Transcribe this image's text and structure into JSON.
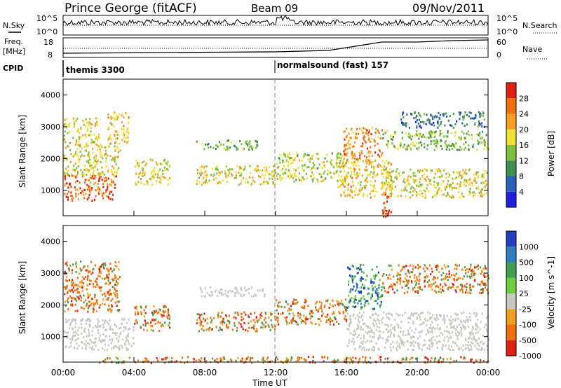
{
  "header": {
    "title": "Prince George (fitACF)",
    "beam": "Beam 09",
    "date": "09/Nov/2011"
  },
  "top_panels": {
    "nsky_label": "N.Sky",
    "nsky_ticks": [
      "10^5",
      "10^0"
    ],
    "nsearch_label": "N.Search",
    "nsearch_ticks": [
      "10^5",
      "10^0"
    ],
    "freq_label": [
      "Freq.",
      "[MHz]"
    ],
    "freq_ticks": [
      "18",
      "8"
    ],
    "nave_label": "Nave",
    "nave_ticks": [
      "60",
      "0"
    ],
    "cpid_label": "CPID",
    "cpid_modes": [
      {
        "name": "themis 3300",
        "start_hour": 0
      },
      {
        "name": "normalsound (fast) 157",
        "start_hour": 12
      }
    ]
  },
  "chart_data": [
    {
      "type": "heatmap",
      "panel": "power",
      "ylabel": "Slant Range [km]",
      "xlabel": "",
      "xlim": [
        0,
        24
      ],
      "ylim": [
        200,
        4500
      ],
      "y_ticks": [
        "1000",
        "2000",
        "3000",
        "4000"
      ],
      "y_tick_values": [
        1000,
        2000,
        3000,
        4000
      ],
      "colorbar": {
        "label": "Power [dB]",
        "ticks": [
          "4",
          "8",
          "12",
          "16",
          "20",
          "24",
          "28"
        ],
        "colors": [
          "#1f1fe0",
          "#2a60b8",
          "#3f8f50",
          "#7fbf3f",
          "#f0e030",
          "#f5a020",
          "#f07010",
          "#e02010"
        ]
      },
      "echo_regions": [
        {
          "t0": 0.0,
          "t1": 3.0,
          "r0": 700,
          "r1": 1500,
          "level": 26
        },
        {
          "t0": 0.0,
          "t1": 3.2,
          "r0": 1500,
          "r1": 2500,
          "level": 18
        },
        {
          "t0": 0.0,
          "t1": 2.0,
          "r0": 2500,
          "r1": 3300,
          "level": 18
        },
        {
          "t0": 2.5,
          "t1": 3.7,
          "r0": 2500,
          "r1": 3500,
          "level": 20
        },
        {
          "t0": 4.0,
          "t1": 6.0,
          "r0": 1200,
          "r1": 2000,
          "level": 18
        },
        {
          "t0": 7.5,
          "t1": 12.0,
          "r0": 1200,
          "r1": 1800,
          "level": 18
        },
        {
          "t0": 7.5,
          "t1": 11.0,
          "r0": 2300,
          "r1": 2600,
          "level": 12
        },
        {
          "t0": 12.0,
          "t1": 16.0,
          "r0": 1300,
          "r1": 2200,
          "level": 16
        },
        {
          "t0": 15.5,
          "t1": 18.5,
          "r0": 800,
          "r1": 2000,
          "level": 20
        },
        {
          "t0": 15.8,
          "t1": 18.0,
          "r0": 2000,
          "r1": 3000,
          "level": 24
        },
        {
          "t0": 18.0,
          "t1": 24.0,
          "r0": 800,
          "r1": 1700,
          "level": 18
        },
        {
          "t0": 18.0,
          "t1": 24.0,
          "r0": 2300,
          "r1": 2900,
          "level": 14
        },
        {
          "t0": 19.0,
          "t1": 23.8,
          "r0": 3000,
          "r1": 3500,
          "level": 8
        },
        {
          "t0": 18.0,
          "t1": 18.5,
          "r0": 200,
          "r1": 1000,
          "level": 29
        }
      ]
    },
    {
      "type": "heatmap",
      "panel": "velocity",
      "ylabel": "Slant Range [km]",
      "xlabel": "Time UT",
      "xlim": [
        0,
        24
      ],
      "ylim": [
        200,
        4500
      ],
      "x_ticks": [
        "00:00",
        "04:00",
        "08:00",
        "12:00",
        "16:00",
        "20:00",
        "00:00"
      ],
      "x_tick_values": [
        0,
        4,
        8,
        12,
        16,
        20,
        24
      ],
      "y_ticks": [
        "1000",
        "2000",
        "3000",
        "4000"
      ],
      "y_tick_values": [
        1000,
        2000,
        3000,
        4000
      ],
      "colorbar": {
        "label": "Velocity [m s^-1]",
        "ticks": [
          "1000",
          "500",
          "100",
          "25",
          "-25",
          "-100",
          "-500",
          "-1000"
        ],
        "colors": [
          "#1f3fc0",
          "#2f7fc0",
          "#3f9f4f",
          "#6fcf3f",
          "#c8c8c0",
          "#f0a020",
          "#f07010",
          "#e02010"
        ]
      },
      "echo_regions": [
        {
          "t0": 0.0,
          "t1": 4.0,
          "r0": 600,
          "r1": 1600,
          "kind": "ground"
        },
        {
          "t0": 0.0,
          "t1": 3.2,
          "r0": 1800,
          "r1": 3400,
          "kind": "negative"
        },
        {
          "t0": 4.0,
          "t1": 6.0,
          "r0": 1200,
          "r1": 2000,
          "kind": "negative"
        },
        {
          "t0": 7.5,
          "t1": 12.0,
          "r0": 1200,
          "r1": 1800,
          "kind": "negative"
        },
        {
          "t0": 12.0,
          "t1": 16.0,
          "r0": 1400,
          "r1": 2200,
          "kind": "negative"
        },
        {
          "t0": 16.0,
          "t1": 24.0,
          "r0": 600,
          "r1": 1800,
          "kind": "ground"
        },
        {
          "t0": 16.0,
          "t1": 18.0,
          "r0": 1900,
          "r1": 3300,
          "kind": "positive"
        },
        {
          "t0": 18.0,
          "t1": 24.0,
          "r0": 2400,
          "r1": 3300,
          "kind": "negative"
        },
        {
          "t0": 7.5,
          "t1": 11.5,
          "r0": 2300,
          "r1": 2600,
          "kind": "ground"
        },
        {
          "t0": 2.0,
          "t1": 24.0,
          "r0": 200,
          "r1": 400,
          "kind": "negative"
        }
      ]
    }
  ],
  "colors": {
    "ground_scatter": "#c8c8c0",
    "axis": "#000000",
    "background": "#ffffff"
  }
}
